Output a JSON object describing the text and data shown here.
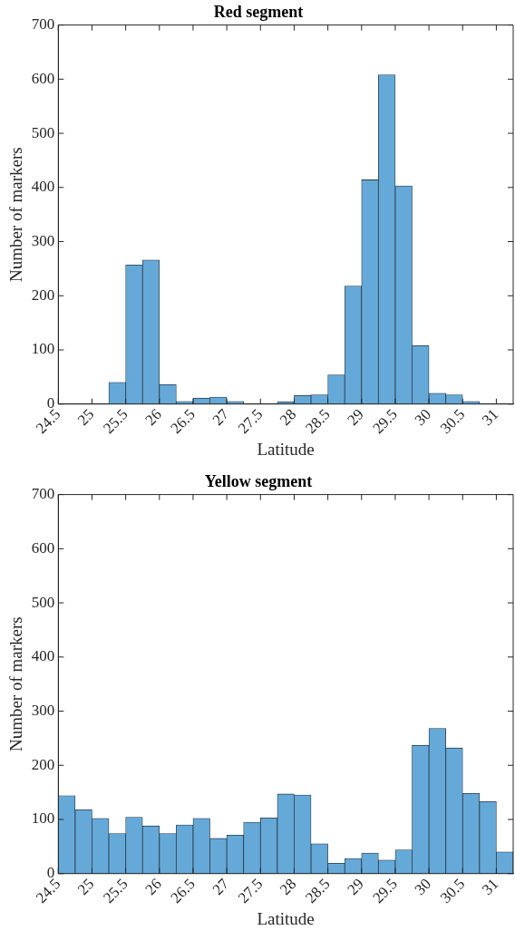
{
  "chart_data": [
    {
      "type": "histogram",
      "title": "Red segment",
      "xlabel": "Latitude",
      "ylabel": "Number of markers",
      "color": "#65a9d8",
      "bins": [
        24.5,
        24.75,
        25,
        25.25,
        25.5,
        25.75,
        26,
        26.25,
        26.5,
        26.75,
        27,
        27.25,
        27.5,
        27.75,
        28,
        28.25,
        28.5,
        28.75,
        29,
        29.25,
        29.5,
        29.75,
        30,
        30.25,
        30.5,
        30.75,
        31
      ],
      "values": [
        0,
        0,
        0,
        40,
        257,
        266,
        36,
        5,
        11,
        13,
        5,
        0,
        0,
        4,
        16,
        17,
        54,
        218,
        414,
        608,
        403,
        108,
        20,
        17,
        5,
        null
      ],
      "xlim": [
        24.5,
        31.25
      ],
      "xticks": [
        24.5,
        25,
        25.5,
        26,
        26.5,
        27,
        27.5,
        28,
        28.5,
        29,
        29.5,
        30,
        30.5,
        31
      ],
      "ylim": [
        0,
        700
      ],
      "yticks": [
        0,
        100,
        200,
        300,
        400,
        500,
        600,
        700
      ],
      "grid": false,
      "legend": false
    },
    {
      "type": "histogram",
      "title": "Yellow segment",
      "xlabel": "Latitude",
      "ylabel": "Number of markers",
      "color": "#65a9d8",
      "bins": [
        24.5,
        24.75,
        25,
        25.25,
        25.5,
        25.75,
        26,
        26.25,
        26.5,
        26.75,
        27,
        27.25,
        27.5,
        27.75,
        28,
        28.25,
        28.5,
        28.75,
        29,
        29.25,
        29.5,
        29.75,
        30,
        30.25,
        30.5,
        30.75,
        31,
        31.25
      ],
      "values": [
        144,
        118,
        102,
        74,
        104,
        88,
        74,
        90,
        102,
        65,
        71,
        95,
        103,
        147,
        145,
        55,
        19,
        28,
        38,
        25,
        44,
        237,
        268,
        232,
        148,
        133,
        40
      ],
      "xlim": [
        24.5,
        31.25
      ],
      "xticks": [
        24.5,
        25,
        25.5,
        26,
        26.5,
        27,
        27.5,
        28,
        28.5,
        29,
        29.5,
        30,
        30.5,
        31
      ],
      "ylim": [
        0,
        700
      ],
      "yticks": [
        0,
        100,
        200,
        300,
        400,
        500,
        600,
        700
      ],
      "grid": false,
      "legend": false
    }
  ]
}
